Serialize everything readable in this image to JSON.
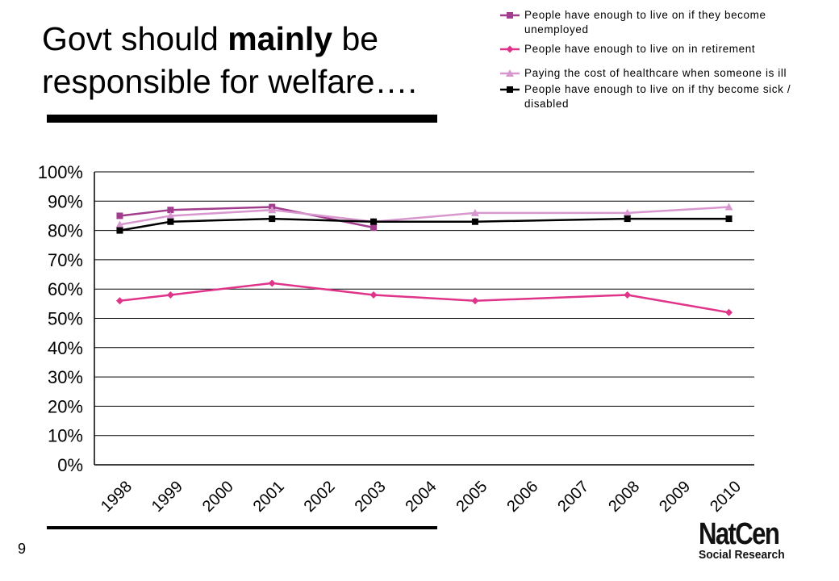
{
  "slide": {
    "title_prefix": "Govt should ",
    "title_bold": "mainly",
    "title_suffix": " be responsible for welfare….",
    "slide_number": "9",
    "logo_main": "NatCen",
    "logo_sub": "Social Research"
  },
  "chart_data": {
    "type": "line",
    "x": [
      "1998",
      "1999",
      "2000",
      "2001",
      "2002",
      "2003",
      "2004",
      "2005",
      "2006",
      "2007",
      "2008",
      "2009",
      "2010"
    ],
    "ylim": [
      0,
      100
    ],
    "yticks": [
      "0%",
      "10%",
      "20%",
      "30%",
      "40%",
      "50%",
      "60%",
      "70%",
      "80%",
      "90%",
      "100%"
    ],
    "grid": true,
    "legend_position": "top-right",
    "series": [
      {
        "name": "People have enough to live on if they become unemployed",
        "color": "#a23d8e",
        "marker": "square",
        "points": [
          [
            "1998",
            85
          ],
          [
            "1999",
            87
          ],
          [
            "2001",
            88
          ],
          [
            "2003",
            81
          ]
        ]
      },
      {
        "name": "People have enough to live on in retirement",
        "color": "#e0338a",
        "marker": "diamond",
        "points": [
          [
            "1998",
            56
          ],
          [
            "1999",
            58
          ],
          [
            "2001",
            62
          ],
          [
            "2003",
            58
          ],
          [
            "2005",
            56
          ],
          [
            "2008",
            58
          ],
          [
            "2010",
            52
          ]
        ]
      },
      {
        "name": "Paying the cost of healthcare when someone is ill",
        "color": "#d898cf",
        "marker": "triangle",
        "points": [
          [
            "1998",
            82
          ],
          [
            "1999",
            85
          ],
          [
            "2001",
            87
          ],
          [
            "2003",
            83
          ],
          [
            "2005",
            86
          ],
          [
            "2008",
            86
          ],
          [
            "2010",
            88
          ]
        ]
      },
      {
        "name": "People have enough to live on if thy become sick / disabled",
        "color": "#000000",
        "marker": "square",
        "points": [
          [
            "1998",
            80
          ],
          [
            "1999",
            83
          ],
          [
            "2001",
            84
          ],
          [
            "2003",
            83
          ],
          [
            "2005",
            83
          ],
          [
            "2008",
            84
          ],
          [
            "2010",
            84
          ]
        ]
      }
    ]
  }
}
